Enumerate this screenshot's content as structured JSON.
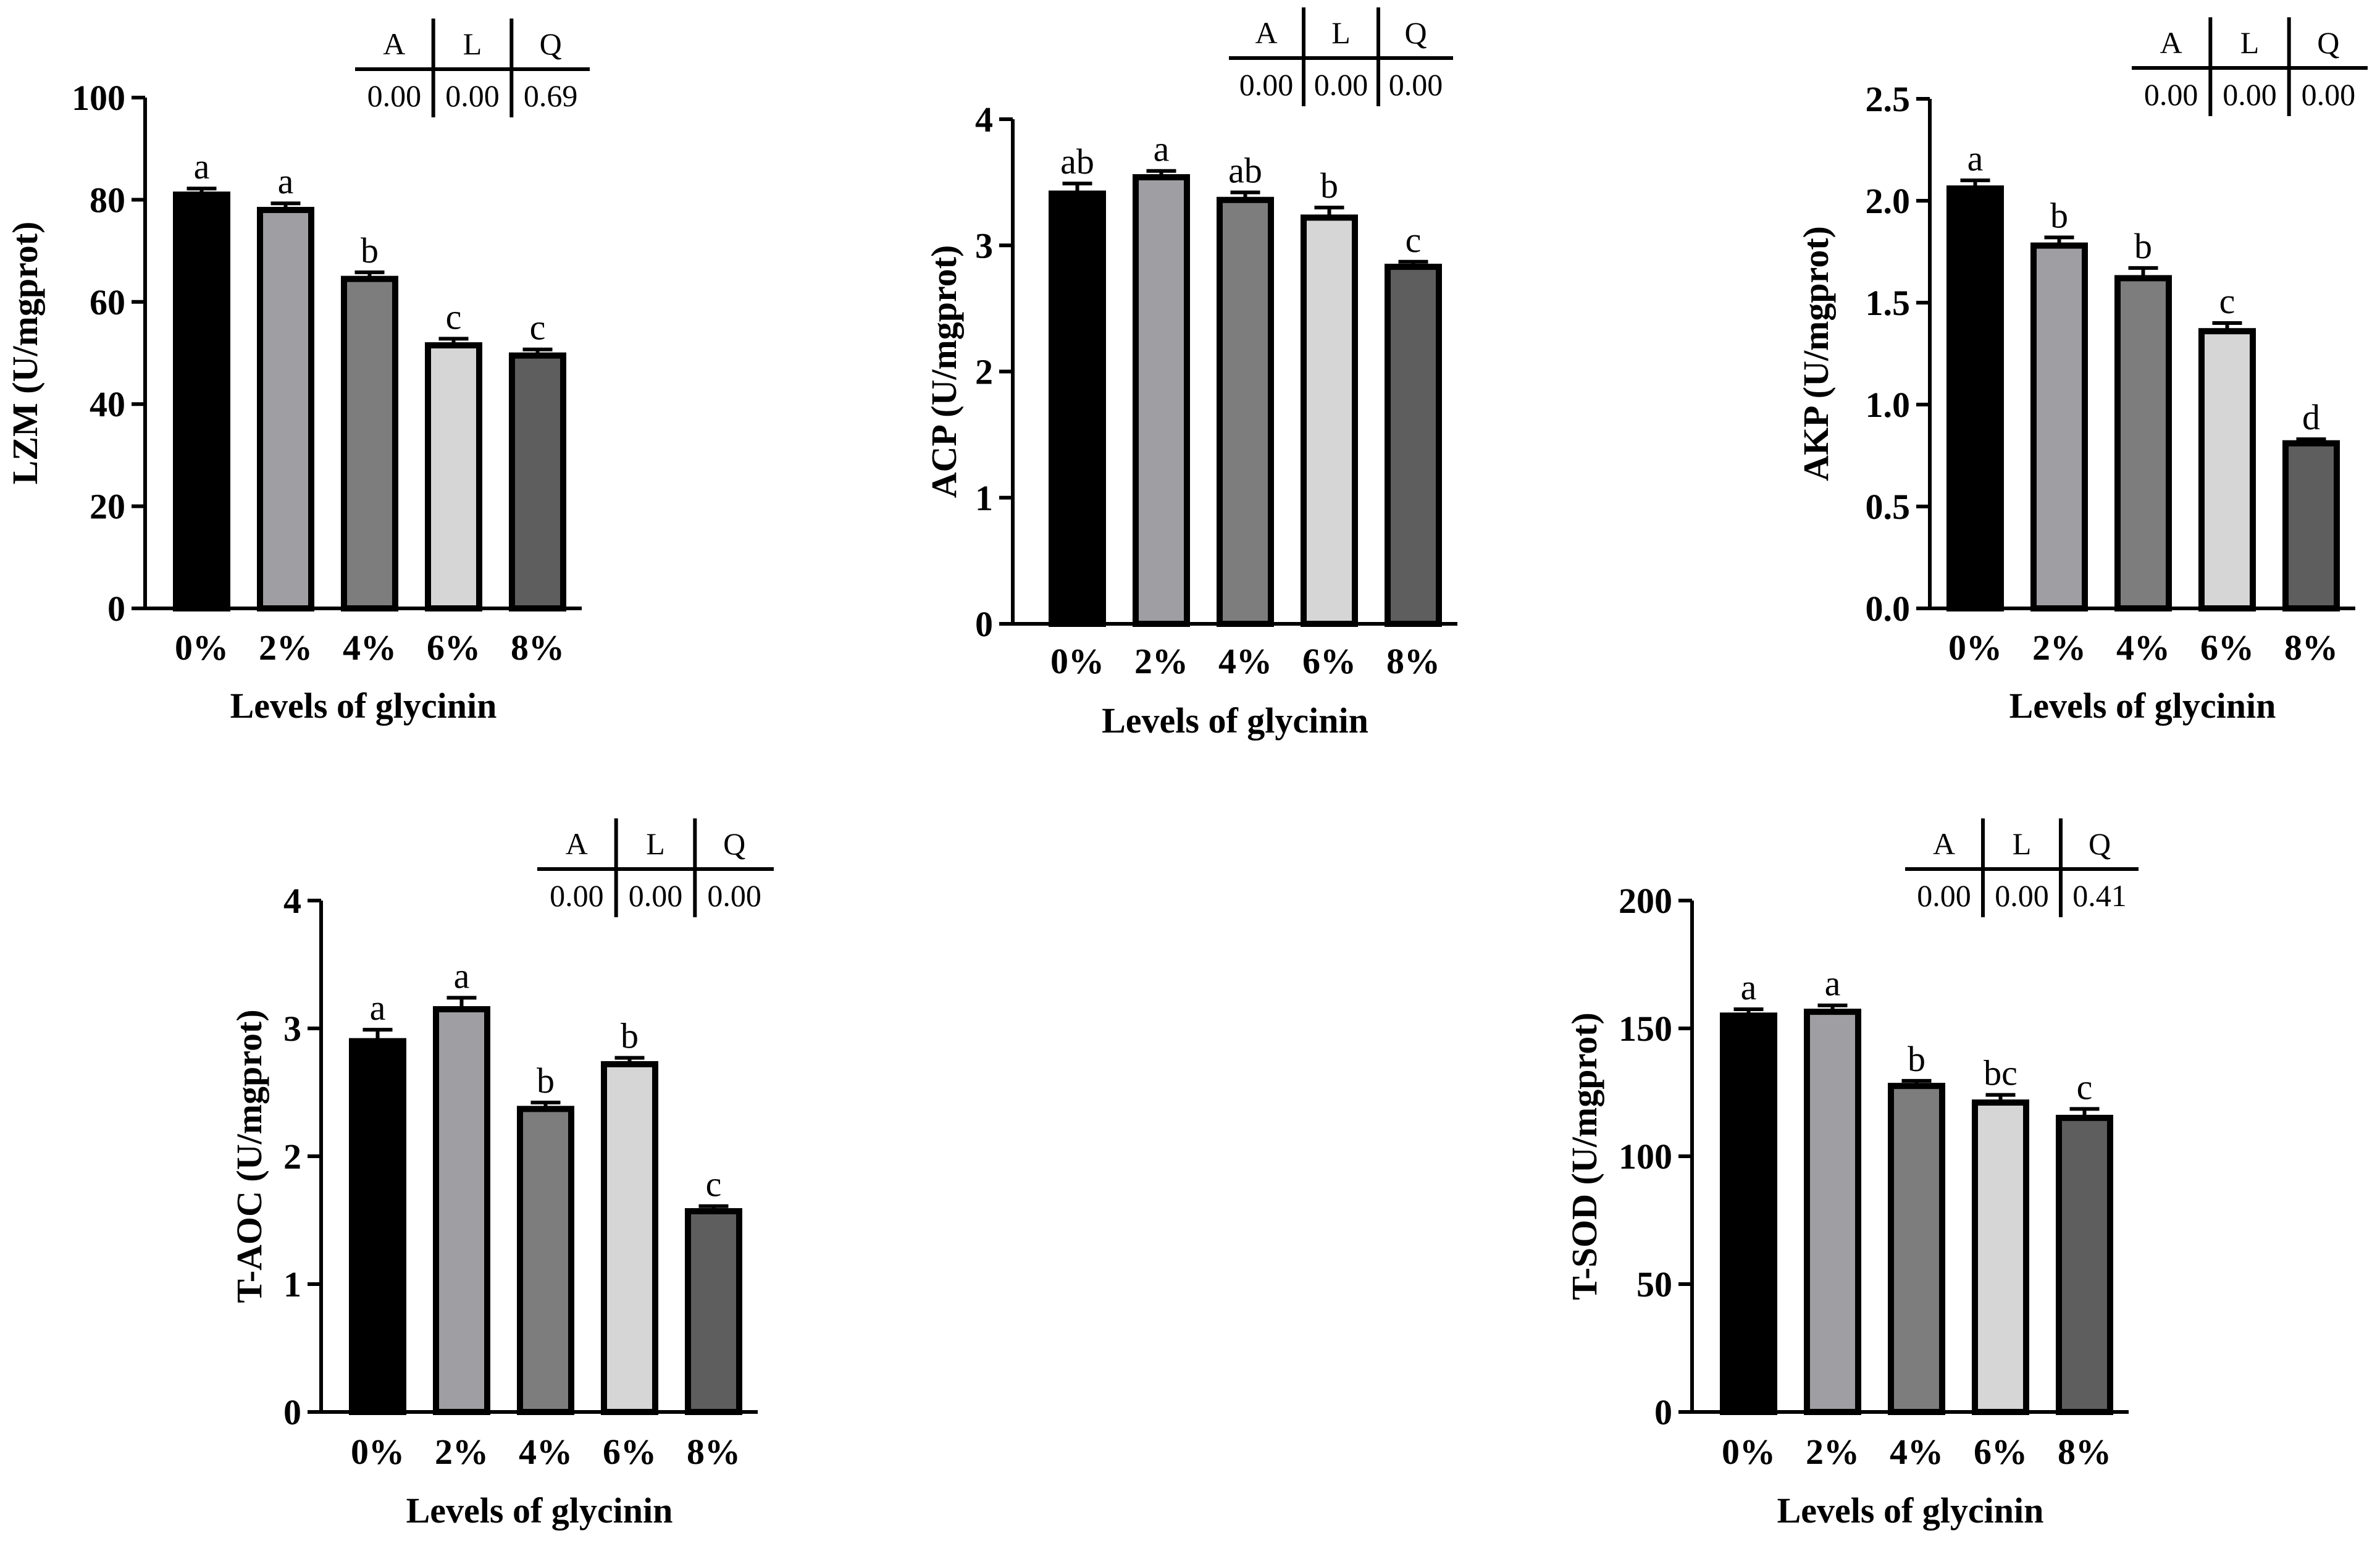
{
  "chart_data": [
    {
      "type": "bar",
      "title": "",
      "xlabel": "Levels of glycinin",
      "ylabel": "LZM (U/mgprot)",
      "ylim": [
        0,
        100
      ],
      "yticks": [
        "0",
        "20",
        "40",
        "60",
        "80",
        "100"
      ],
      "categories": [
        "0%",
        "2%",
        "4%",
        "6%",
        "8%"
      ],
      "values": [
        81,
        78,
        64.5,
        51.5,
        49.5
      ],
      "errors": [
        1.2,
        1.3,
        1.3,
        1.3,
        1.2
      ],
      "significance": [
        "a",
        "a",
        "b",
        "c",
        "c"
      ],
      "bar_colors": [
        "#000000",
        "#9e9ea3",
        "#7d7d7d",
        "#d6d6d6",
        "#5e5e5e"
      ],
      "table": {
        "headers": [
          "A",
          "L",
          "Q"
        ],
        "values": [
          "0.00",
          "0.00",
          "0.69"
        ]
      }
    },
    {
      "type": "bar",
      "title": "",
      "xlabel": "Levels of glycinin",
      "ylabel": "ACP (U/mgprot)",
      "ylim": [
        0,
        4
      ],
      "yticks": [
        "0",
        "1",
        "2",
        "3",
        "4"
      ],
      "categories": [
        "0%",
        "2%",
        "4%",
        "6%",
        "8%"
      ],
      "values": [
        3.41,
        3.54,
        3.36,
        3.22,
        2.83
      ],
      "errors": [
        0.08,
        0.05,
        0.06,
        0.08,
        0.04
      ],
      "significance": [
        "ab",
        "a",
        "ab",
        "b",
        "c"
      ],
      "bar_colors": [
        "#000000",
        "#9e9ea3",
        "#7d7d7d",
        "#d6d6d6",
        "#5e5e5e"
      ],
      "table": {
        "headers": [
          "A",
          "L",
          "Q"
        ],
        "values": [
          "0.00",
          "0.00",
          "0.00"
        ]
      }
    },
    {
      "type": "bar",
      "title": "",
      "xlabel": "Levels of glycinin",
      "ylabel": "AKP (U/mgprot)",
      "ylim": [
        0,
        2.5
      ],
      "yticks": [
        "0.0",
        "0.5",
        "1.0",
        "1.5",
        "2.0",
        "2.5"
      ],
      "categories": [
        "0%",
        "2%",
        "4%",
        "6%",
        "8%"
      ],
      "values": [
        2.06,
        1.78,
        1.62,
        1.36,
        0.81
      ],
      "errors": [
        0.04,
        0.04,
        0.05,
        0.04,
        0.02
      ],
      "significance": [
        "a",
        "b",
        "b",
        "c",
        "d"
      ],
      "bar_colors": [
        "#000000",
        "#9e9ea3",
        "#7d7d7d",
        "#d6d6d6",
        "#5e5e5e"
      ],
      "table": {
        "headers": [
          "A",
          "L",
          "Q"
        ],
        "values": [
          "0.00",
          "0.00",
          "0.00"
        ]
      }
    },
    {
      "type": "bar",
      "title": "",
      "xlabel": "Levels of glycinin",
      "ylabel": "T-AOC (U/mgprot)",
      "ylim": [
        0,
        4
      ],
      "yticks": [
        "0",
        "1",
        "2",
        "3",
        "4"
      ],
      "categories": [
        "0%",
        "2%",
        "4%",
        "6%",
        "8%"
      ],
      "values": [
        2.9,
        3.15,
        2.37,
        2.72,
        1.57
      ],
      "errors": [
        0.09,
        0.09,
        0.05,
        0.05,
        0.04
      ],
      "significance": [
        "a",
        "a",
        "b",
        "b",
        "c"
      ],
      "bar_colors": [
        "#000000",
        "#9e9ea3",
        "#7d7d7d",
        "#d6d6d6",
        "#5e5e5e"
      ],
      "table": {
        "headers": [
          "A",
          "L",
          "Q"
        ],
        "values": [
          "0.00",
          "0.00",
          "0.00"
        ]
      }
    },
    {
      "type": "bar",
      "title": "",
      "xlabel": "Levels of glycinin",
      "ylabel": "T-SOD (U/mgprot)",
      "ylim": [
        0,
        200
      ],
      "yticks": [
        "0",
        "50",
        "100",
        "150",
        "200"
      ],
      "categories": [
        "0%",
        "2%",
        "4%",
        "6%",
        "8%"
      ],
      "values": [
        155,
        156.5,
        127.5,
        121,
        115
      ],
      "errors": [
        2.5,
        2.5,
        2,
        3,
        3.5
      ],
      "significance": [
        "a",
        "a",
        "b",
        "bc",
        "c"
      ],
      "bar_colors": [
        "#000000",
        "#9e9ea3",
        "#7d7d7d",
        "#d6d6d6",
        "#5e5e5e"
      ],
      "table": {
        "headers": [
          "A",
          "L",
          "Q"
        ],
        "values": [
          "0.00",
          "0.00",
          "0.41"
        ]
      }
    }
  ]
}
